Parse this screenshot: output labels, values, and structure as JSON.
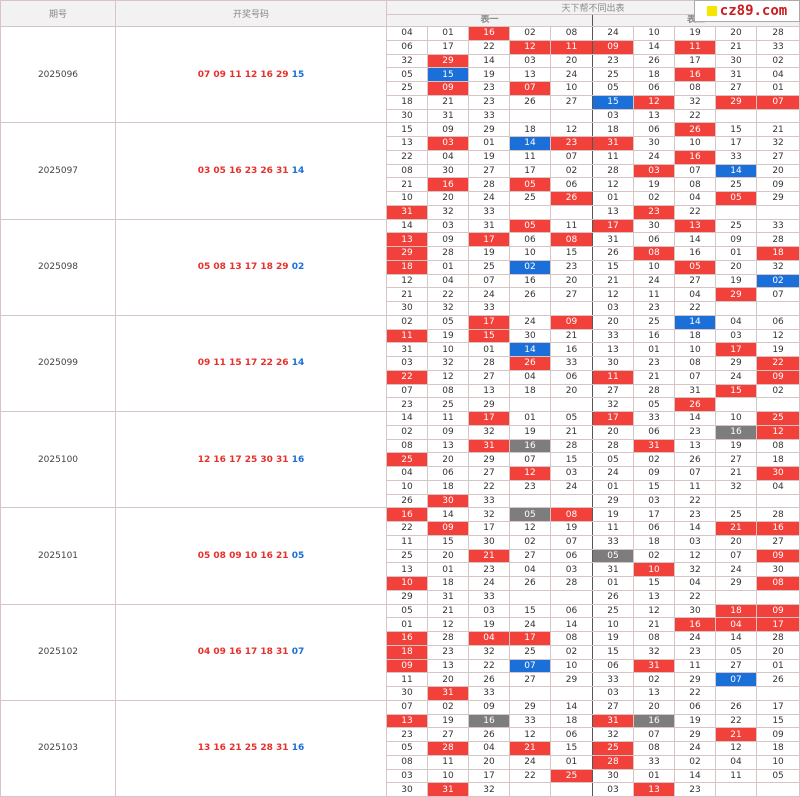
{
  "header": {
    "issue": "期号",
    "draw": "开奖号码",
    "table_title": "天下帮不同出表",
    "table1": "表一",
    "table2": "表二"
  },
  "watermark": "cz89.com",
  "colors": {
    "red": "#f2403a",
    "blue": "#1a6fd8",
    "gray": "#7d7d7d"
  },
  "issues": [
    {
      "id": "2025096",
      "red": "07 09 11 12 16 29",
      "blue": "15",
      "rows": [
        [
          "04",
          "01",
          "16r",
          "02",
          "08",
          "24",
          "10",
          "19",
          "20",
          "28"
        ],
        [
          "06",
          "17",
          "22",
          "12r",
          "11r",
          "09r",
          "14",
          "11r",
          "21",
          "33"
        ],
        [
          "32",
          "29r",
          "14",
          "03",
          "20",
          "23",
          "26",
          "17",
          "30",
          "02"
        ],
        [
          "05",
          "15b",
          "19",
          "13",
          "24",
          "25",
          "18",
          "16r",
          "31",
          "04"
        ],
        [
          "25",
          "09r",
          "23",
          "07r",
          "10",
          "05",
          "06",
          "08",
          "27",
          "01"
        ],
        [
          "18",
          "21",
          "23",
          "26",
          "27",
          "15b",
          "12r",
          "32",
          "29r",
          "07r"
        ],
        [
          "30",
          "31",
          "33",
          "",
          "",
          "03",
          "13",
          "22",
          "",
          ""
        ]
      ]
    },
    {
      "id": "2025097",
      "red": "03 05 16 23 26 31",
      "blue": "14",
      "rows": [
        [
          "15",
          "09",
          "29",
          "18",
          "12",
          "18",
          "06",
          "26r",
          "15",
          "21"
        ],
        [
          "13",
          "03r",
          "01",
          "14b",
          "23r",
          "31r",
          "30",
          "10",
          "17",
          "32"
        ],
        [
          "22",
          "04",
          "19",
          "11",
          "07",
          "11",
          "24",
          "16r",
          "33",
          "27"
        ],
        [
          "08",
          "30",
          "27",
          "17",
          "02",
          "28",
          "03r",
          "07",
          "14b",
          "20"
        ],
        [
          "21",
          "16r",
          "28",
          "05r",
          "06",
          "12",
          "19",
          "08",
          "25",
          "09"
        ],
        [
          "10",
          "20",
          "24",
          "25",
          "26r",
          "01",
          "02",
          "04",
          "05r",
          "29"
        ],
        [
          "31r",
          "32",
          "33",
          "",
          "",
          "13",
          "23r",
          "22",
          "",
          ""
        ]
      ]
    },
    {
      "id": "2025098",
      "red": "05 08 13 17 18 29",
      "blue": "02",
      "rows": [
        [
          "14",
          "03",
          "31",
          "05r",
          "11",
          "17r",
          "30",
          "13r",
          "25",
          "33"
        ],
        [
          "13r",
          "09",
          "17r",
          "06",
          "08r",
          "31",
          "06",
          "14",
          "09",
          "28"
        ],
        [
          "29r",
          "28",
          "19",
          "10",
          "15",
          "26",
          "08r",
          "16",
          "01",
          "18r"
        ],
        [
          "18r",
          "01",
          "25",
          "02b",
          "23",
          "15",
          "10",
          "05r",
          "20",
          "32"
        ],
        [
          "12",
          "04",
          "07",
          "16",
          "20",
          "21",
          "24",
          "27",
          "19",
          "02b"
        ],
        [
          "21",
          "22",
          "24",
          "26",
          "27",
          "12",
          "11",
          "04",
          "29r",
          "07"
        ],
        [
          "30",
          "32",
          "33",
          "",
          "",
          "03",
          "23",
          "22",
          "",
          ""
        ]
      ]
    },
    {
      "id": "2025099",
      "red": "09 11 15 17 22 26",
      "blue": "14",
      "rows": [
        [
          "02",
          "05",
          "17r",
          "24",
          "09r",
          "20",
          "25",
          "14b",
          "04",
          "06"
        ],
        [
          "11r",
          "19",
          "15r",
          "30",
          "21",
          "33",
          "16",
          "18",
          "03",
          "12"
        ],
        [
          "31",
          "10",
          "01",
          "14b",
          "16",
          "13",
          "01",
          "10",
          "17r",
          "19"
        ],
        [
          "03",
          "32",
          "28",
          "26r",
          "33",
          "30",
          "23",
          "08",
          "29",
          "22r"
        ],
        [
          "22r",
          "12",
          "27",
          "04",
          "06",
          "11r",
          "21",
          "07",
          "24",
          "09r"
        ],
        [
          "07",
          "08",
          "13",
          "18",
          "20",
          "27",
          "28",
          "31",
          "15r",
          "02"
        ],
        [
          "23",
          "25",
          "29",
          "",
          "",
          "32",
          "05",
          "26r",
          "",
          ""
        ]
      ]
    },
    {
      "id": "2025100",
      "red": "12 16 17 25 30 31",
      "blue": "16",
      "rows": [
        [
          "14",
          "11",
          "17r",
          "01",
          "05",
          "17r",
          "33",
          "14",
          "10",
          "25r"
        ],
        [
          "02",
          "09",
          "32",
          "19",
          "21",
          "20",
          "06",
          "23",
          "16g",
          "12r"
        ],
        [
          "08",
          "13",
          "31r",
          "16g",
          "28",
          "28",
          "31r",
          "13",
          "19",
          "08"
        ],
        [
          "25r",
          "20",
          "29",
          "07",
          "15",
          "05",
          "02",
          "26",
          "27",
          "18"
        ],
        [
          "04",
          "06",
          "27",
          "12r",
          "03",
          "24",
          "09",
          "07",
          "21",
          "30r"
        ],
        [
          "10",
          "18",
          "22",
          "23",
          "24",
          "01",
          "15",
          "11",
          "32",
          "04"
        ],
        [
          "26",
          "30r",
          "33",
          "",
          "",
          "29",
          "03",
          "22",
          "",
          ""
        ]
      ]
    },
    {
      "id": "2025101",
      "red": "05 08 09 10 16 21",
      "blue": "05",
      "rows": [
        [
          "16r",
          "14",
          "32",
          "05g",
          "08r",
          "19",
          "17",
          "23",
          "25",
          "28"
        ],
        [
          "22",
          "09r",
          "17",
          "12",
          "19",
          "11",
          "06",
          "14",
          "21r",
          "16r"
        ],
        [
          "11",
          "15",
          "30",
          "02",
          "07",
          "33",
          "18",
          "03",
          "20",
          "27"
        ],
        [
          "25",
          "20",
          "21r",
          "27",
          "06",
          "05g",
          "02",
          "12",
          "07",
          "09r"
        ],
        [
          "13",
          "01",
          "23",
          "04",
          "03",
          "31",
          "10r",
          "32",
          "24",
          "30"
        ],
        [
          "10r",
          "18",
          "24",
          "26",
          "28",
          "01",
          "15",
          "04",
          "29",
          "08r"
        ],
        [
          "29",
          "31",
          "33",
          "",
          "",
          "26",
          "13",
          "22",
          "",
          ""
        ]
      ]
    },
    {
      "id": "2025102",
      "red": "04 09 16 17 18 31",
      "blue": "07",
      "rows": [
        [
          "05",
          "21",
          "03",
          "15",
          "06",
          "25",
          "12",
          "30",
          "18r",
          "09r"
        ],
        [
          "01",
          "12",
          "19",
          "24",
          "14",
          "10",
          "21",
          "16r",
          "04r",
          "17r"
        ],
        [
          "16r",
          "28",
          "04r",
          "17r",
          "08",
          "19",
          "08",
          "24",
          "14",
          "28"
        ],
        [
          "18r",
          "23",
          "32",
          "25",
          "02",
          "15",
          "32",
          "23",
          "05",
          "20"
        ],
        [
          "09r",
          "13",
          "22",
          "07b",
          "10",
          "06",
          "31r",
          "11",
          "27",
          "01"
        ],
        [
          "11",
          "20",
          "26",
          "27",
          "29",
          "33",
          "02",
          "29",
          "07b",
          "26"
        ],
        [
          "30",
          "31r",
          "33",
          "",
          "",
          "03",
          "13",
          "22",
          "",
          ""
        ]
      ]
    },
    {
      "id": "2025103",
      "red": "13 16 21 25 28 31",
      "blue": "16",
      "rows": [
        [
          "07",
          "02",
          "09",
          "29",
          "14",
          "27",
          "20",
          "06",
          "26",
          "17"
        ],
        [
          "13r",
          "19",
          "16g",
          "33",
          "18",
          "31r",
          "16g",
          "19",
          "22",
          "15"
        ],
        [
          "23",
          "27",
          "26",
          "12",
          "06",
          "32",
          "07",
          "29",
          "21r",
          "09"
        ],
        [
          "05",
          "28r",
          "04",
          "21r",
          "15",
          "25r",
          "08",
          "24",
          "12",
          "18"
        ],
        [
          "08",
          "11",
          "20",
          "24",
          "01",
          "28r",
          "33",
          "02",
          "04",
          "10"
        ],
        [
          "03",
          "10",
          "17",
          "22",
          "25r",
          "30",
          "01",
          "14",
          "11",
          "05"
        ],
        [
          "30",
          "31r",
          "32",
          "",
          "",
          "03",
          "13r",
          "23",
          "",
          ""
        ]
      ]
    }
  ]
}
